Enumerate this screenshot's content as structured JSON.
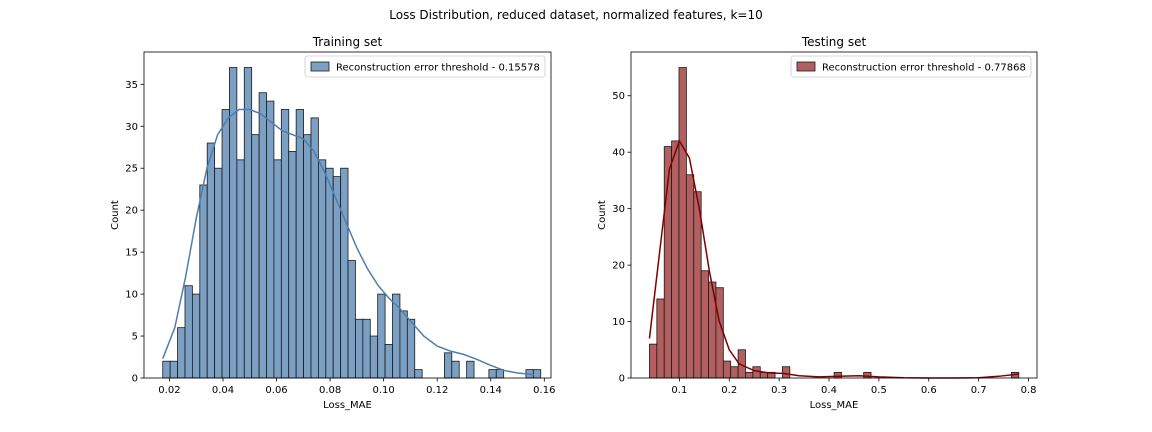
{
  "figure": {
    "suptitle": "Loss Distribution, reduced dataset, normalized features, k=10"
  },
  "chart_data": [
    {
      "type": "bar",
      "title": "Training set",
      "xlabel": "Loss_MAE",
      "ylabel": "Count",
      "legend": {
        "label": "Reconstruction error threshold - 0.15578",
        "placement": "upper right"
      },
      "colors": {
        "face": "#7ba0c4",
        "edge": "#1a1a1a",
        "kde": "#4c7fae"
      },
      "bin_start": 0.0175,
      "bin_width": 0.002768,
      "values": [
        2,
        2,
        6,
        11,
        10,
        23,
        28,
        25,
        32,
        37,
        26,
        37,
        29,
        34,
        33,
        26,
        32,
        27,
        32,
        29,
        31,
        26,
        25,
        24,
        25,
        14,
        7,
        7,
        5,
        10,
        4,
        10,
        8,
        7,
        1,
        0,
        0,
        0,
        3,
        2,
        0,
        2,
        0,
        0,
        1,
        1,
        0,
        0,
        0,
        1,
        1
      ],
      "kde": {
        "x": [
          0.0175,
          0.022,
          0.026,
          0.03,
          0.034,
          0.038,
          0.042,
          0.046,
          0.05,
          0.054,
          0.058,
          0.062,
          0.066,
          0.07,
          0.074,
          0.078,
          0.082,
          0.086,
          0.09,
          0.094,
          0.098,
          0.102,
          0.106,
          0.11,
          0.115,
          0.12,
          0.125,
          0.13,
          0.135,
          0.14,
          0.145,
          0.15,
          0.156
        ],
        "y": [
          2.3,
          6,
          12,
          19,
          25,
          29,
          31,
          32,
          32,
          31.5,
          30.5,
          29.5,
          29,
          28.5,
          27,
          24.5,
          21.5,
          18.5,
          15.5,
          13,
          11,
          9.5,
          8.3,
          6.8,
          5,
          3.8,
          3.2,
          2.8,
          2.2,
          1.5,
          0.9,
          0.6,
          0.4
        ]
      },
      "xlim": [
        0.0105,
        0.1625
      ],
      "ylim": [
        0,
        38.85
      ],
      "xticks": [
        0.02,
        0.04,
        0.06,
        0.08,
        0.1,
        0.12,
        0.14,
        0.16
      ],
      "xtick_labels": [
        "0.02",
        "0.04",
        "0.06",
        "0.08",
        "0.10",
        "0.12",
        "0.14",
        "0.16"
      ],
      "yticks": [
        0,
        5,
        10,
        15,
        20,
        25,
        30,
        35
      ],
      "ytick_labels": [
        "0",
        "5",
        "10",
        "15",
        "20",
        "25",
        "30",
        "35"
      ]
    },
    {
      "type": "bar",
      "title": "Testing set",
      "xlabel": "Loss_MAE",
      "ylabel": "Count",
      "legend": {
        "label": "Reconstruction error threshold - 0.77868",
        "placement": "upper right"
      },
      "colors": {
        "face": "#b35f5f",
        "edge": "#1a1a1a",
        "kde": "#800000"
      },
      "bin_start": 0.04,
      "bin_width": 0.01481,
      "values": [
        6,
        14,
        41,
        42,
        55,
        36,
        33,
        19,
        17,
        16,
        3,
        2,
        5,
        1,
        2,
        1,
        1,
        0,
        2,
        0,
        0,
        0,
        0,
        0,
        0,
        1,
        0,
        0,
        0,
        1,
        0,
        0,
        0,
        0,
        0,
        0,
        0,
        0,
        0,
        0,
        0,
        0,
        0,
        0,
        0,
        0,
        0,
        0,
        0,
        1
      ],
      "kde": {
        "x": [
          0.04,
          0.06,
          0.08,
          0.1,
          0.12,
          0.14,
          0.16,
          0.18,
          0.2,
          0.22,
          0.25,
          0.28,
          0.31,
          0.34,
          0.38,
          0.42,
          0.46,
          0.5,
          0.55,
          0.6,
          0.65,
          0.7,
          0.74,
          0.78
        ],
        "y": [
          7,
          22,
          37,
          42,
          39,
          30,
          19,
          10,
          5,
          2.5,
          1.3,
          0.9,
          0.8,
          0.4,
          0.2,
          0.3,
          0.4,
          0.2,
          0.05,
          0,
          0,
          0.05,
          0.3,
          0.7
        ]
      },
      "xlim": [
        0.003,
        0.817
      ],
      "ylim": [
        0,
        57.75
      ],
      "xticks": [
        0.1,
        0.2,
        0.3,
        0.4,
        0.5,
        0.6,
        0.7,
        0.8
      ],
      "xtick_labels": [
        "0.1",
        "0.2",
        "0.3",
        "0.4",
        "0.5",
        "0.6",
        "0.7",
        "0.8"
      ],
      "yticks": [
        0,
        10,
        20,
        30,
        40,
        50
      ],
      "ytick_labels": [
        "0",
        "10",
        "20",
        "30",
        "40",
        "50"
      ]
    }
  ]
}
